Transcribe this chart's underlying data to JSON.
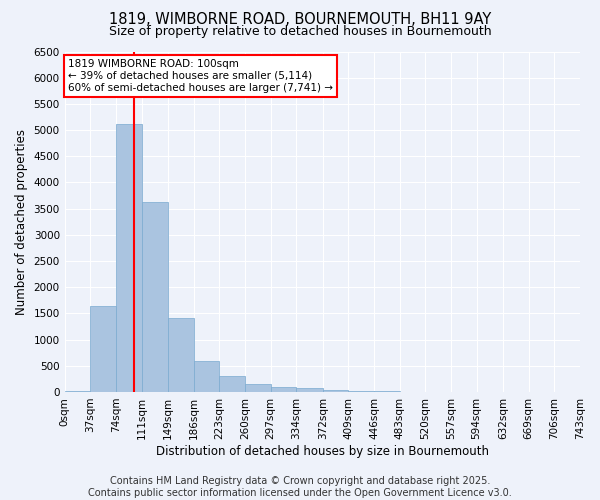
{
  "title_line1": "1819, WIMBORNE ROAD, BOURNEMOUTH, BH11 9AY",
  "title_line2": "Size of property relative to detached houses in Bournemouth",
  "xlabel": "Distribution of detached houses by size in Bournemouth",
  "ylabel": "Number of detached properties",
  "bar_color": "#aac4e0",
  "bar_edge_color": "#7aaad0",
  "background_color": "#eef2fa",
  "vline_x": 100,
  "vline_color": "red",
  "annotation_text": "1819 WIMBORNE ROAD: 100sqm\n← 39% of detached houses are smaller (5,114)\n60% of semi-detached houses are larger (7,741) →",
  "annotation_box_color": "white",
  "annotation_box_edge": "red",
  "bins": [
    0,
    37,
    74,
    111,
    149,
    186,
    223,
    260,
    297,
    334,
    372,
    409,
    446,
    483,
    520,
    557,
    594,
    632,
    669,
    706,
    743
  ],
  "counts": [
    25,
    1650,
    5114,
    3620,
    1420,
    590,
    310,
    150,
    90,
    70,
    30,
    15,
    10,
    5,
    3,
    2,
    1,
    1,
    1,
    1
  ],
  "ylim": [
    0,
    6500
  ],
  "yticks": [
    0,
    500,
    1000,
    1500,
    2000,
    2500,
    3000,
    3500,
    4000,
    4500,
    5000,
    5500,
    6000,
    6500
  ],
  "footer_line1": "Contains HM Land Registry data © Crown copyright and database right 2025.",
  "footer_line2": "Contains public sector information licensed under the Open Government Licence v3.0.",
  "title_fontsize": 10.5,
  "subtitle_fontsize": 9,
  "axis_label_fontsize": 8.5,
  "tick_fontsize": 7.5,
  "annotation_fontsize": 7.5,
  "footer_fontsize": 7
}
